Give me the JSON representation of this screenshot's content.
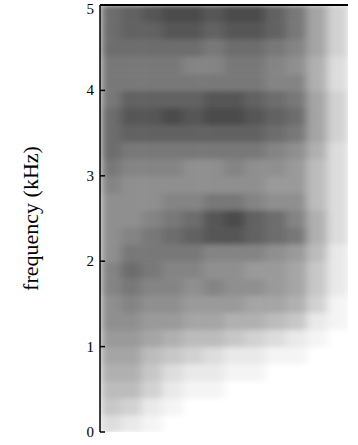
{
  "chart_data": {
    "type": "heatmap",
    "y_label": "frequency (kHz)",
    "ylim": [
      0,
      5
    ],
    "yticks": [
      0,
      1,
      2,
      3,
      4,
      5
    ],
    "tick_labels": "y",
    "clim": [
      0,
      1
    ],
    "cells": [
      [
        0.15,
        0.1,
        0.05,
        0,
        0,
        0,
        0,
        0,
        0,
        0,
        0,
        0
      ],
      [
        0.25,
        0.2,
        0.1,
        0.05,
        0,
        0,
        0,
        0,
        0,
        0,
        0,
        0
      ],
      [
        0.3,
        0.3,
        0.2,
        0.1,
        0.05,
        0.05,
        0,
        0,
        0,
        0,
        0,
        0
      ],
      [
        0.35,
        0.35,
        0.25,
        0.15,
        0.1,
        0.1,
        0.05,
        0.05,
        0,
        0,
        0,
        0
      ],
      [
        0.4,
        0.4,
        0.3,
        0.25,
        0.2,
        0.15,
        0.1,
        0.1,
        0.05,
        0.05,
        0,
        0
      ],
      [
        0.45,
        0.45,
        0.4,
        0.35,
        0.3,
        0.3,
        0.25,
        0.2,
        0.15,
        0.1,
        0.05,
        0
      ],
      [
        0.5,
        0.5,
        0.45,
        0.45,
        0.4,
        0.4,
        0.35,
        0.35,
        0.3,
        0.25,
        0.1,
        0.05
      ],
      [
        0.5,
        0.55,
        0.5,
        0.5,
        0.45,
        0.45,
        0.45,
        0.4,
        0.4,
        0.35,
        0.2,
        0.05
      ],
      [
        0.55,
        0.6,
        0.55,
        0.55,
        0.5,
        0.55,
        0.5,
        0.5,
        0.45,
        0.4,
        0.25,
        0.1
      ],
      [
        0.55,
        0.65,
        0.6,
        0.55,
        0.55,
        0.5,
        0.5,
        0.45,
        0.45,
        0.4,
        0.25,
        0.1
      ],
      [
        0.5,
        0.6,
        0.6,
        0.6,
        0.6,
        0.55,
        0.55,
        0.55,
        0.5,
        0.45,
        0.3,
        0.1
      ],
      [
        0.5,
        0.55,
        0.6,
        0.65,
        0.7,
        0.75,
        0.75,
        0.7,
        0.65,
        0.6,
        0.35,
        0.15
      ],
      [
        0.5,
        0.5,
        0.55,
        0.6,
        0.65,
        0.75,
        0.8,
        0.7,
        0.65,
        0.55,
        0.35,
        0.15
      ],
      [
        0.5,
        0.5,
        0.5,
        0.55,
        0.55,
        0.6,
        0.6,
        0.55,
        0.5,
        0.5,
        0.3,
        0.15
      ],
      [
        0.55,
        0.5,
        0.5,
        0.5,
        0.5,
        0.5,
        0.5,
        0.5,
        0.45,
        0.45,
        0.3,
        0.15
      ],
      [
        0.6,
        0.55,
        0.55,
        0.55,
        0.5,
        0.5,
        0.55,
        0.5,
        0.5,
        0.45,
        0.3,
        0.15
      ],
      [
        0.65,
        0.6,
        0.6,
        0.6,
        0.6,
        0.6,
        0.6,
        0.6,
        0.55,
        0.5,
        0.35,
        0.15
      ],
      [
        0.65,
        0.7,
        0.7,
        0.7,
        0.7,
        0.7,
        0.7,
        0.7,
        0.65,
        0.6,
        0.4,
        0.2
      ],
      [
        0.65,
        0.75,
        0.75,
        0.8,
        0.75,
        0.8,
        0.8,
        0.75,
        0.7,
        0.65,
        0.4,
        0.2
      ],
      [
        0.6,
        0.7,
        0.7,
        0.7,
        0.7,
        0.75,
        0.75,
        0.7,
        0.65,
        0.6,
        0.4,
        0.2
      ],
      [
        0.6,
        0.6,
        0.6,
        0.6,
        0.6,
        0.6,
        0.6,
        0.6,
        0.55,
        0.55,
        0.35,
        0.15
      ],
      [
        0.6,
        0.6,
        0.6,
        0.6,
        0.55,
        0.55,
        0.6,
        0.6,
        0.55,
        0.5,
        0.35,
        0.15
      ],
      [
        0.65,
        0.65,
        0.65,
        0.65,
        0.65,
        0.6,
        0.65,
        0.65,
        0.6,
        0.55,
        0.4,
        0.2
      ],
      [
        0.65,
        0.7,
        0.7,
        0.75,
        0.75,
        0.7,
        0.75,
        0.75,
        0.7,
        0.6,
        0.4,
        0.2
      ],
      [
        0.65,
        0.7,
        0.75,
        0.8,
        0.8,
        0.75,
        0.8,
        0.8,
        0.7,
        0.6,
        0.4,
        0.2
      ]
    ]
  }
}
